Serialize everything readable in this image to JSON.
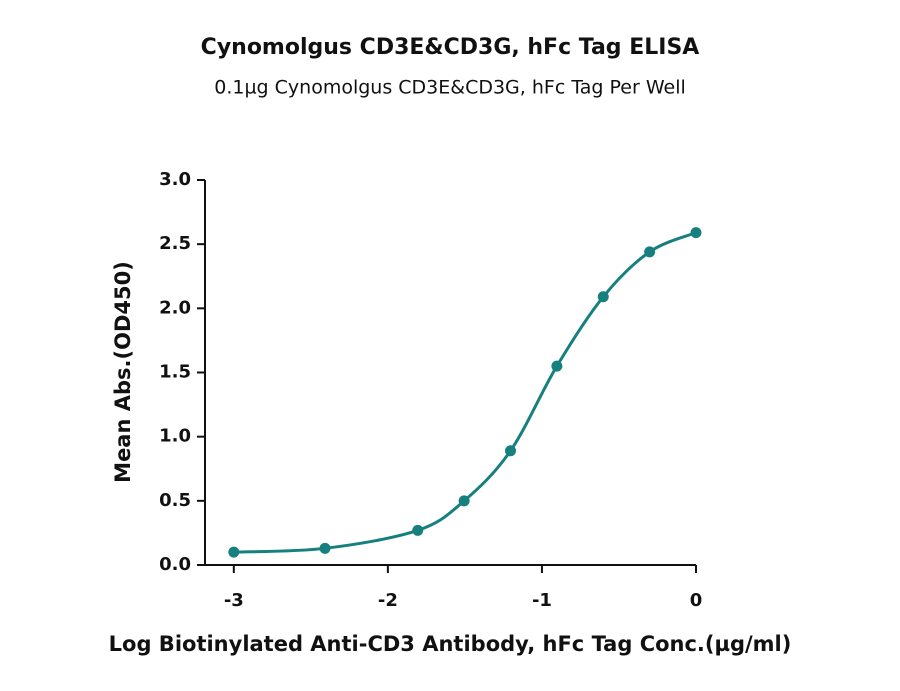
{
  "chart_data": {
    "type": "line",
    "title": "Cynomolgus CD3E&CD3G, hFc Tag ELISA",
    "subtitle": "0.1µg Cynomolgus CD3E&CD3G, hFc Tag Per Well",
    "x_label": "Log Biotinylated Anti-CD3 Antibody, hFc Tag Conc.(µg/ml)",
    "y_label": "Mean Abs.(OD450)",
    "x": [
      -3,
      -2.408,
      -1.806,
      -1.505,
      -1.204,
      -0.903,
      -0.602,
      -0.301,
      0
    ],
    "series": [
      {
        "color": "#17807f",
        "values": [
          0.1,
          0.13,
          0.27,
          0.5,
          0.89,
          1.55,
          2.09,
          2.44,
          2.59
        ]
      }
    ],
    "xlim": [
      -3.2,
      0
    ],
    "ylim": [
      0,
      3
    ],
    "xticks": [
      -3,
      -2,
      -1,
      0
    ],
    "yticks": [
      {
        "value": 0,
        "label": "0.0"
      },
      {
        "value": 0.5,
        "label": "0.5"
      },
      {
        "value": 1,
        "label": "1.0"
      },
      {
        "value": 1.5,
        "label": "1.5"
      },
      {
        "value": 2,
        "label": "2.0"
      },
      {
        "value": 2.5,
        "label": "2.5"
      },
      {
        "value": 3,
        "label": "3.0"
      }
    ]
  }
}
